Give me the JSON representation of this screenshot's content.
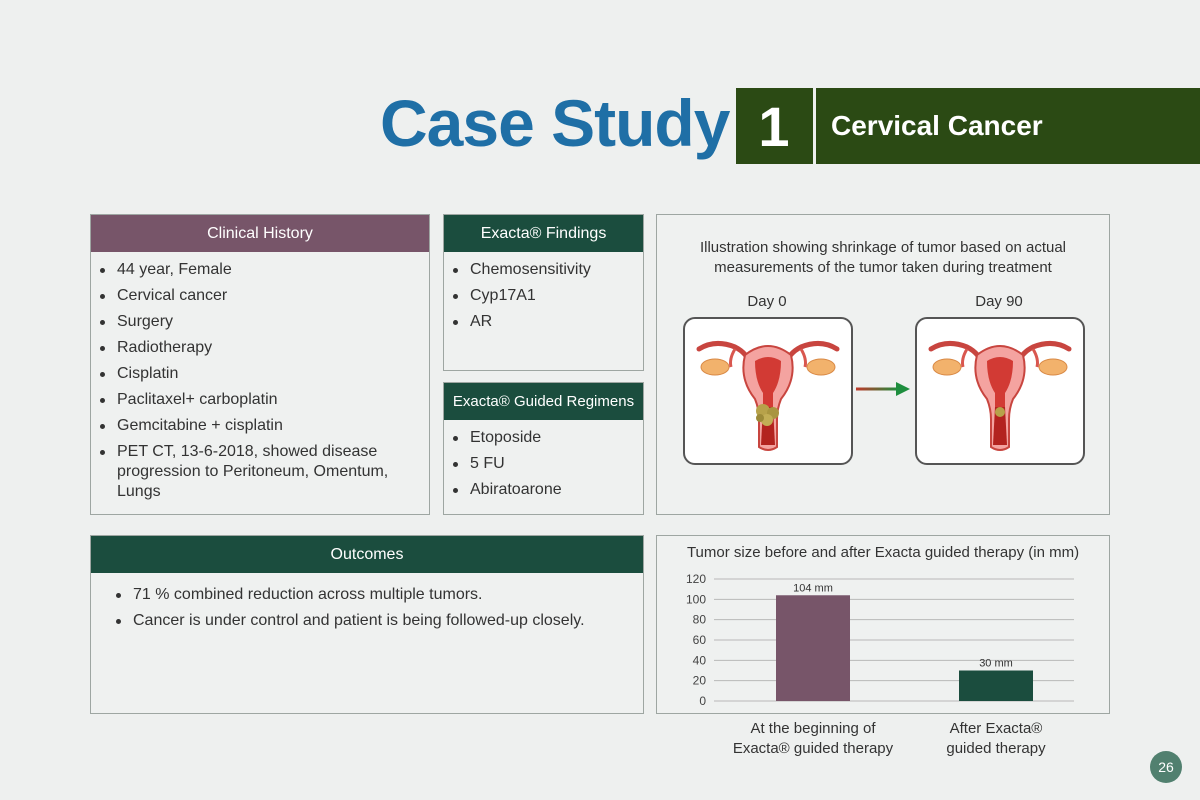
{
  "header": {
    "title": "Case Study",
    "number": "1",
    "subtitle": "Cervical Cancer"
  },
  "clinical_history": {
    "heading": "Clinical History",
    "items": [
      "44 year, Female",
      "Cervical cancer",
      "Surgery",
      "Radiotherapy",
      "Cisplatin",
      "Paclitaxel+ carboplatin",
      "Gemcitabine + cisplatin",
      "PET CT, 13-6-2018, showed disease progression to Peritoneum, Omentum, Lungs"
    ]
  },
  "findings": {
    "heading": "Exacta® Findings",
    "items": [
      "Chemosensitivity",
      "Cyp17A1",
      "AR"
    ]
  },
  "regimens": {
    "heading": "Exacta® Guided Regimens",
    "items": [
      "Etoposide",
      "5 FU",
      "Abiratoarone"
    ]
  },
  "illustration": {
    "caption": "Illustration showing shrinkage of tumor based on actual measurements of the tumor taken during treatment",
    "day_start": "Day 0",
    "day_end": "Day 90",
    "icons": [
      "uterus-tumor-large-icon",
      "arrow-right-icon",
      "uterus-tumor-small-icon"
    ]
  },
  "outcomes": {
    "heading": "Outcomes",
    "items": [
      "71 % combined reduction across multiple tumors.",
      "Cancer is under control and patient is being followed-up closely."
    ]
  },
  "chart_data": {
    "type": "bar",
    "title": "Tumor size before and after Exacta guided therapy (in mm)",
    "categories": [
      "At the beginning of Exacta® guided therapy",
      "After Exacta® guided therapy"
    ],
    "category_lines": [
      [
        "At the beginning of",
        "Exacta® guided therapy"
      ],
      [
        "After Exacta®",
        "guided therapy"
      ]
    ],
    "values": [
      104,
      30
    ],
    "data_labels": [
      "104 mm",
      "30 mm"
    ],
    "bar_colors": [
      "#775569",
      "#1b4d3e"
    ],
    "yticks": [
      0,
      20,
      40,
      60,
      80,
      100,
      120
    ],
    "ylim": [
      0,
      120
    ],
    "grid": true
  },
  "page": {
    "number": "26"
  },
  "colors": {
    "title_blue": "#1f6fa6",
    "header_green": "#2b4a14",
    "panel_purple": "#775569",
    "panel_green": "#1b4d3e",
    "badge": "#51806f"
  }
}
